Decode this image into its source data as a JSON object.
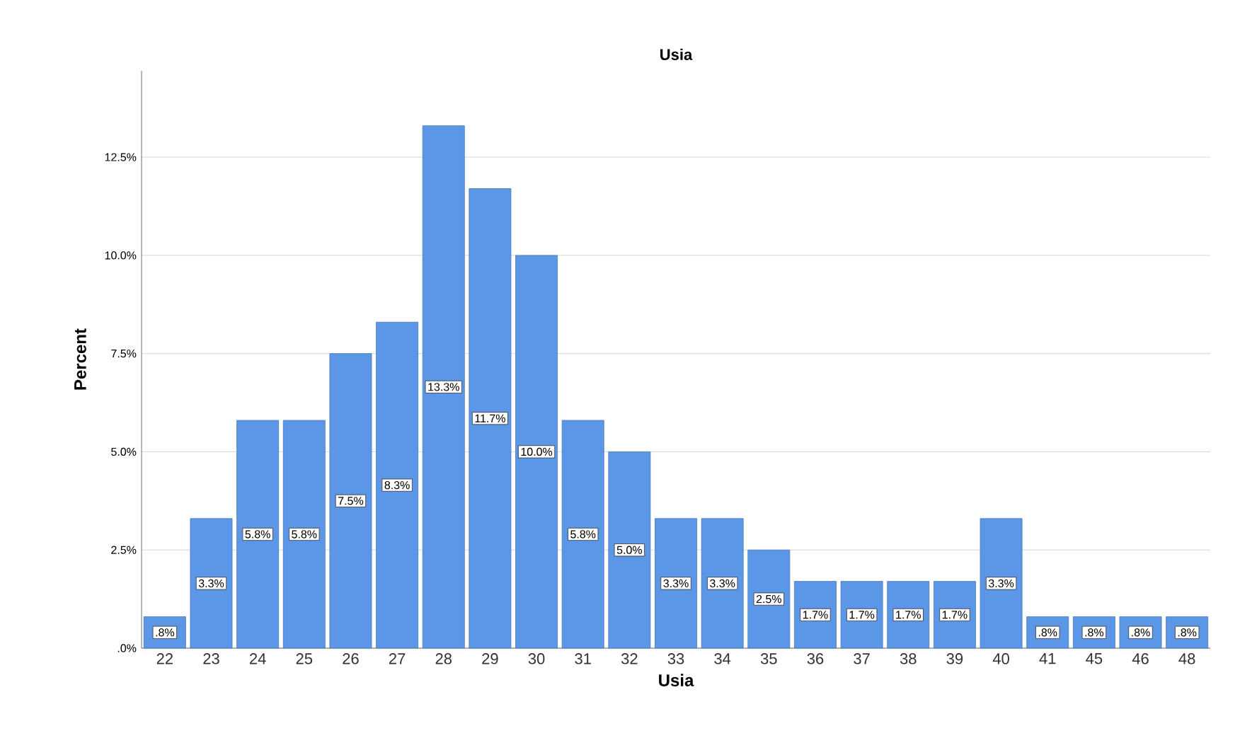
{
  "chart_data": {
    "type": "bar",
    "title": "Usia",
    "xlabel": "Usia",
    "ylabel": "Percent",
    "categories": [
      "22",
      "23",
      "24",
      "25",
      "26",
      "27",
      "28",
      "29",
      "30",
      "31",
      "32",
      "33",
      "34",
      "35",
      "36",
      "37",
      "38",
      "39",
      "40",
      "41",
      "45",
      "46",
      "48"
    ],
    "values": [
      0.8,
      3.3,
      5.8,
      5.8,
      7.5,
      8.3,
      13.3,
      11.7,
      10.0,
      5.8,
      5.0,
      3.3,
      3.3,
      2.5,
      1.7,
      1.7,
      1.7,
      1.7,
      3.3,
      0.8,
      0.8,
      0.8,
      0.8
    ],
    "value_labels": [
      ".8%",
      "3.3%",
      "5.8%",
      "5.8%",
      "7.5%",
      "8.3%",
      "13.3%",
      "11.7%",
      "10.0%",
      "5.8%",
      "5.0%",
      "3.3%",
      "3.3%",
      "2.5%",
      "1.7%",
      "1.7%",
      "1.7%",
      "1.7%",
      "3.3%",
      ".8%",
      ".8%",
      ".8%",
      ".8%"
    ],
    "color": "#5b97e6",
    "ylim": [
      0,
      14.7
    ],
    "yticks": [
      {
        "value": 0,
        "label": ".0%"
      },
      {
        "value": 2.5,
        "label": "2.5%"
      },
      {
        "value": 5,
        "label": "5.0%"
      },
      {
        "value": 7.5,
        "label": "7.5%"
      },
      {
        "value": 10,
        "label": "10.0%"
      },
      {
        "value": 12.5,
        "label": "12.5%"
      }
    ],
    "grid": "y"
  }
}
